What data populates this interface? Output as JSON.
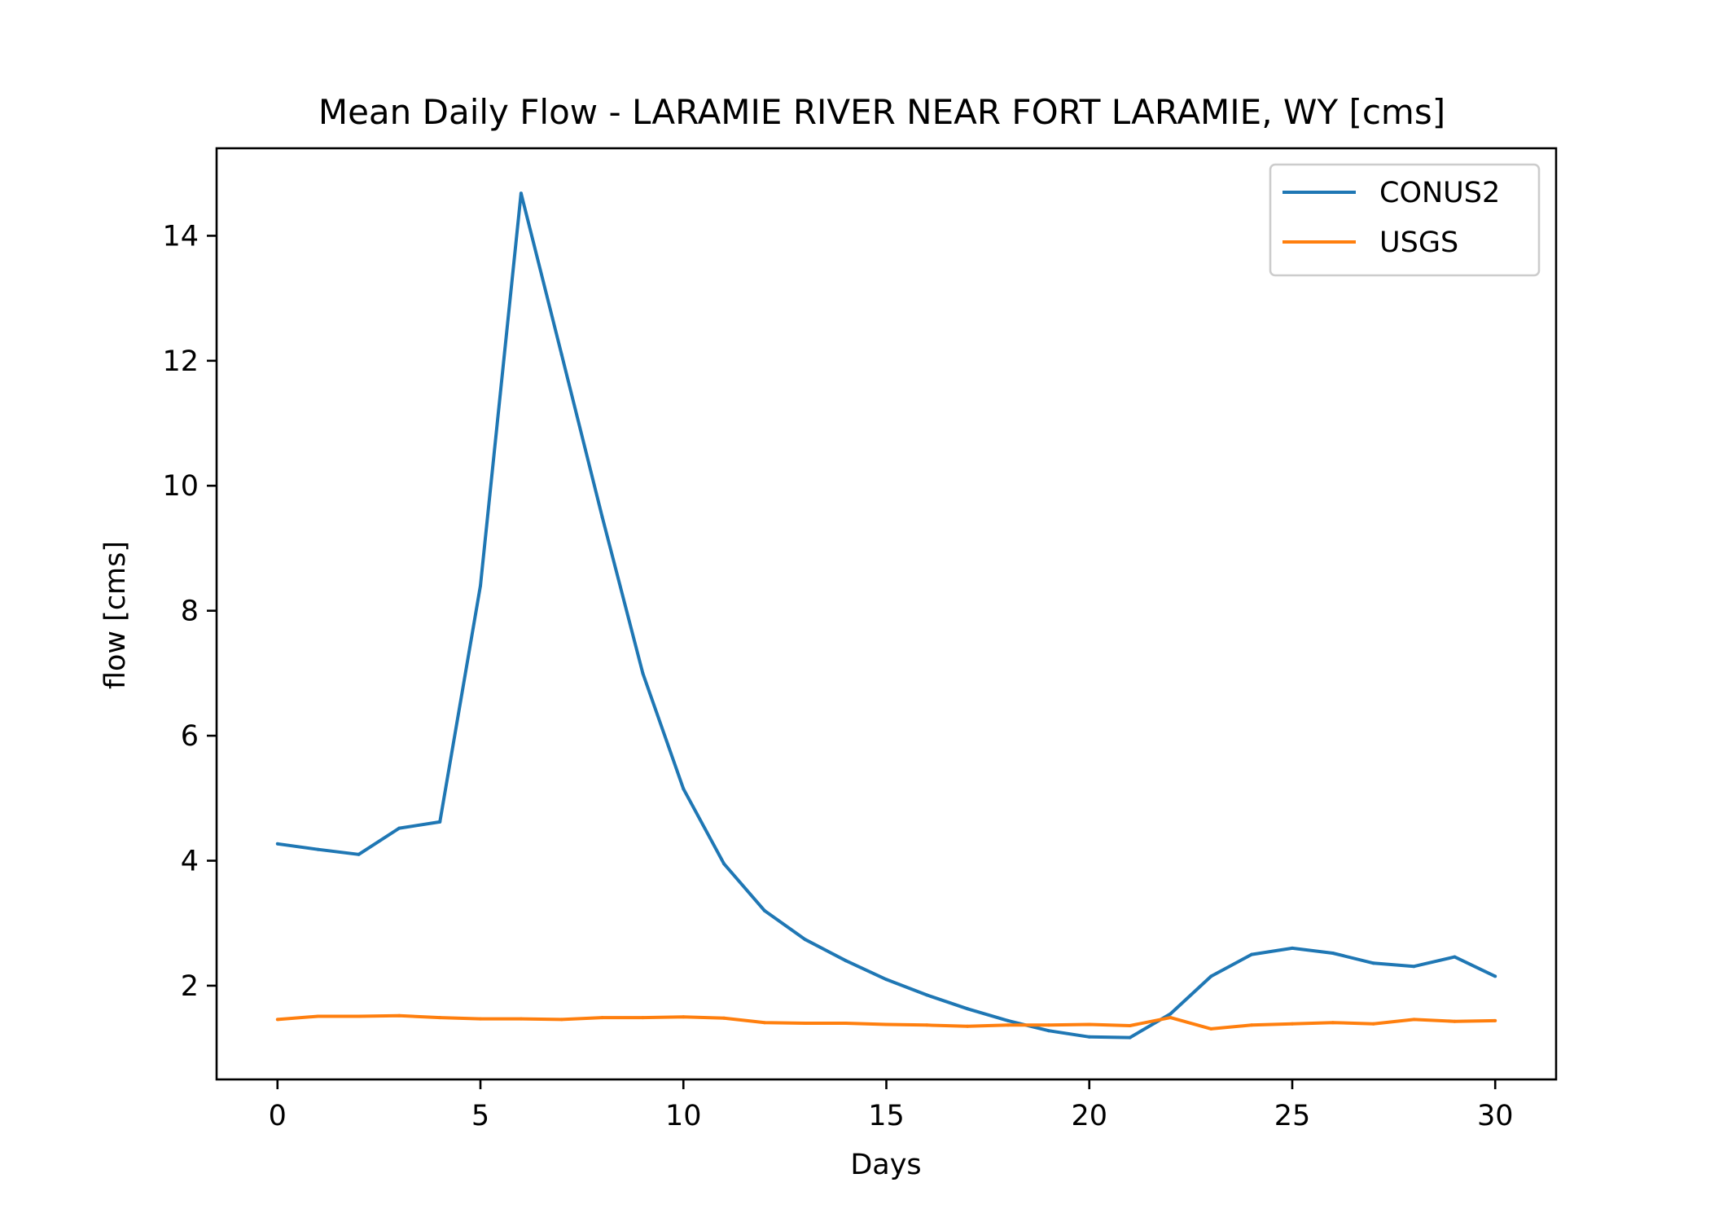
{
  "chart_data": {
    "type": "line",
    "title": "Mean Daily Flow - LARAMIE RIVER NEAR FORT LARAMIE, WY [cms]",
    "xlabel": "Days",
    "ylabel": "flow [cms]",
    "xlim": [
      -1.5,
      31.5
    ],
    "ylim": [
      0.5,
      15.4
    ],
    "xticks": [
      0,
      5,
      10,
      15,
      20,
      25,
      30
    ],
    "yticks": [
      2,
      4,
      6,
      8,
      10,
      12,
      14
    ],
    "grid": false,
    "legend_position": "upper right",
    "x": [
      0,
      1,
      2,
      3,
      4,
      5,
      6,
      7,
      8,
      9,
      10,
      11,
      12,
      13,
      14,
      15,
      16,
      17,
      18,
      19,
      20,
      21,
      22,
      23,
      24,
      25,
      26,
      27,
      28,
      29,
      30
    ],
    "series": [
      {
        "name": "CONUS2",
        "color": "#1f77b4",
        "values": [
          4.27,
          4.18,
          4.1,
          4.52,
          4.62,
          8.4,
          14.68,
          12.1,
          9.5,
          7.0,
          5.15,
          3.95,
          3.2,
          2.74,
          2.4,
          2.1,
          1.85,
          1.63,
          1.44,
          1.28,
          1.18,
          1.17,
          1.55,
          2.15,
          2.5,
          2.6,
          2.52,
          2.36,
          2.31,
          2.46,
          2.15
        ]
      },
      {
        "name": "USGS",
        "color": "#ff7f0e",
        "values": [
          1.46,
          1.51,
          1.51,
          1.52,
          1.49,
          1.47,
          1.47,
          1.46,
          1.49,
          1.49,
          1.5,
          1.48,
          1.41,
          1.4,
          1.4,
          1.38,
          1.37,
          1.35,
          1.37,
          1.37,
          1.38,
          1.36,
          1.49,
          1.31,
          1.37,
          1.39,
          1.41,
          1.39,
          1.46,
          1.43,
          1.44
        ]
      }
    ]
  }
}
